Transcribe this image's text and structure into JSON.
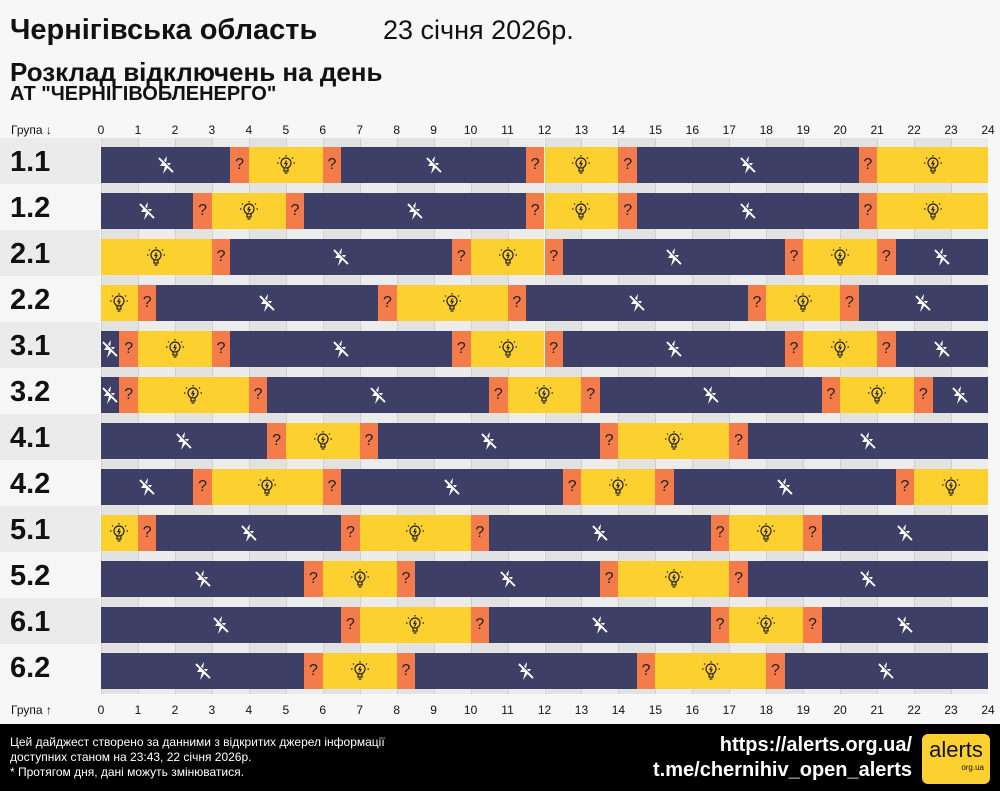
{
  "header": {
    "title": "Чернігівська область",
    "date": "23 січня 2026р.",
    "subtitle": "Розклад відключень на день",
    "company": "АТ \"ЧЕРНІГІВОБЛЕНЕРГО\""
  },
  "chart_data": {
    "type": "table",
    "x_top_label": "Група ↓",
    "x_bottom_label": "Група ↑",
    "xlim": [
      0,
      24
    ],
    "ticks": [
      "0",
      "1",
      "2",
      "3",
      "4",
      "5",
      "6",
      "7",
      "8",
      "9",
      "10",
      "11",
      "12",
      "13",
      "14",
      "15",
      "16",
      "17",
      "18",
      "19",
      "20",
      "21",
      "22",
      "23",
      "24"
    ],
    "legend": {
      "off": "power-off-icon",
      "on": "light-bulb-icon",
      "maybe": "?"
    },
    "colors": {
      "off": "#3e3f66",
      "on": "#fcd02f",
      "maybe": "#f47c4b"
    },
    "groups": [
      {
        "name": "1.1",
        "segments": [
          [
            "off",
            0,
            3.5
          ],
          [
            "maybe",
            3.5,
            4
          ],
          [
            "on",
            4,
            6
          ],
          [
            "maybe",
            6,
            6.5
          ],
          [
            "off",
            6.5,
            11.5
          ],
          [
            "maybe",
            11.5,
            12
          ],
          [
            "on",
            12,
            14
          ],
          [
            "maybe",
            14,
            14.5
          ],
          [
            "off",
            14.5,
            20.5
          ],
          [
            "maybe",
            20.5,
            21
          ],
          [
            "on",
            21,
            24
          ]
        ]
      },
      {
        "name": "1.2",
        "segments": [
          [
            "off",
            0,
            2.5
          ],
          [
            "maybe",
            2.5,
            3
          ],
          [
            "on",
            3,
            5
          ],
          [
            "maybe",
            5,
            5.5
          ],
          [
            "off",
            5.5,
            11.5
          ],
          [
            "maybe",
            11.5,
            12
          ],
          [
            "on",
            12,
            14
          ],
          [
            "maybe",
            14,
            14.5
          ],
          [
            "off",
            14.5,
            20.5
          ],
          [
            "maybe",
            20.5,
            21
          ],
          [
            "on",
            21,
            24
          ]
        ]
      },
      {
        "name": "2.1",
        "segments": [
          [
            "on",
            0,
            3
          ],
          [
            "maybe",
            3,
            3.5
          ],
          [
            "off",
            3.5,
            9.5
          ],
          [
            "maybe",
            9.5,
            10
          ],
          [
            "on",
            10,
            12
          ],
          [
            "maybe",
            12,
            12.5
          ],
          [
            "off",
            12.5,
            18.5
          ],
          [
            "maybe",
            18.5,
            19
          ],
          [
            "on",
            19,
            21
          ],
          [
            "maybe",
            21,
            21.5
          ],
          [
            "off",
            21.5,
            24
          ]
        ]
      },
      {
        "name": "2.2",
        "segments": [
          [
            "on",
            0,
            1
          ],
          [
            "maybe",
            1,
            1.5
          ],
          [
            "off",
            1.5,
            7.5
          ],
          [
            "maybe",
            7.5,
            8
          ],
          [
            "on",
            8,
            11
          ],
          [
            "maybe",
            11,
            11.5
          ],
          [
            "off",
            11.5,
            17.5
          ],
          [
            "maybe",
            17.5,
            18
          ],
          [
            "on",
            18,
            20
          ],
          [
            "maybe",
            20,
            20.5
          ],
          [
            "off",
            20.5,
            24
          ]
        ]
      },
      {
        "name": "3.1",
        "segments": [
          [
            "off",
            0,
            0.5
          ],
          [
            "maybe",
            0.5,
            1
          ],
          [
            "on",
            1,
            3
          ],
          [
            "maybe",
            3,
            3.5
          ],
          [
            "off",
            3.5,
            9.5
          ],
          [
            "maybe",
            9.5,
            10
          ],
          [
            "on",
            10,
            12
          ],
          [
            "maybe",
            12,
            12.5
          ],
          [
            "off",
            12.5,
            18.5
          ],
          [
            "maybe",
            18.5,
            19
          ],
          [
            "on",
            19,
            21
          ],
          [
            "maybe",
            21,
            21.5
          ],
          [
            "off",
            21.5,
            24
          ]
        ]
      },
      {
        "name": "3.2",
        "segments": [
          [
            "off",
            0,
            0.5
          ],
          [
            "maybe",
            0.5,
            1
          ],
          [
            "on",
            1,
            4
          ],
          [
            "maybe",
            4,
            4.5
          ],
          [
            "off",
            4.5,
            10.5
          ],
          [
            "maybe",
            10.5,
            11
          ],
          [
            "on",
            11,
            13
          ],
          [
            "maybe",
            13,
            13.5
          ],
          [
            "off",
            13.5,
            19.5
          ],
          [
            "maybe",
            19.5,
            20
          ],
          [
            "on",
            20,
            22
          ],
          [
            "maybe",
            22,
            22.5
          ],
          [
            "off",
            22.5,
            24
          ]
        ]
      },
      {
        "name": "4.1",
        "segments": [
          [
            "off",
            0,
            4.5
          ],
          [
            "maybe",
            4.5,
            5
          ],
          [
            "on",
            5,
            7
          ],
          [
            "maybe",
            7,
            7.5
          ],
          [
            "off",
            7.5,
            13.5
          ],
          [
            "maybe",
            13.5,
            14
          ],
          [
            "on",
            14,
            17
          ],
          [
            "maybe",
            17,
            17.5
          ],
          [
            "off",
            17.5,
            24
          ]
        ]
      },
      {
        "name": "4.2",
        "segments": [
          [
            "off",
            0,
            2.5
          ],
          [
            "maybe",
            2.5,
            3
          ],
          [
            "on",
            3,
            6
          ],
          [
            "maybe",
            6,
            6.5
          ],
          [
            "off",
            6.5,
            12.5
          ],
          [
            "maybe",
            12.5,
            13
          ],
          [
            "on",
            13,
            15
          ],
          [
            "maybe",
            15,
            15.5
          ],
          [
            "off",
            15.5,
            21.5
          ],
          [
            "maybe",
            21.5,
            22
          ],
          [
            "on",
            22,
            24
          ]
        ]
      },
      {
        "name": "5.1",
        "segments": [
          [
            "on",
            0,
            1
          ],
          [
            "maybe",
            1,
            1.5
          ],
          [
            "off",
            1.5,
            6.5
          ],
          [
            "maybe",
            6.5,
            7
          ],
          [
            "on",
            7,
            10
          ],
          [
            "maybe",
            10,
            10.5
          ],
          [
            "off",
            10.5,
            16.5
          ],
          [
            "maybe",
            16.5,
            17
          ],
          [
            "on",
            17,
            19
          ],
          [
            "maybe",
            19,
            19.5
          ],
          [
            "off",
            19.5,
            24
          ]
        ]
      },
      {
        "name": "5.2",
        "segments": [
          [
            "off",
            0,
            5.5
          ],
          [
            "maybe",
            5.5,
            6
          ],
          [
            "on",
            6,
            8
          ],
          [
            "maybe",
            8,
            8.5
          ],
          [
            "off",
            8.5,
            13.5
          ],
          [
            "maybe",
            13.5,
            14
          ],
          [
            "on",
            14,
            17
          ],
          [
            "maybe",
            17,
            17.5
          ],
          [
            "off",
            17.5,
            24
          ]
        ]
      },
      {
        "name": "6.1",
        "segments": [
          [
            "off",
            0,
            6.5
          ],
          [
            "maybe",
            6.5,
            7
          ],
          [
            "on",
            7,
            10
          ],
          [
            "maybe",
            10,
            10.5
          ],
          [
            "off",
            10.5,
            16.5
          ],
          [
            "maybe",
            16.5,
            17
          ],
          [
            "on",
            17,
            19
          ],
          [
            "maybe",
            19,
            19.5
          ],
          [
            "off",
            19.5,
            24
          ]
        ]
      },
      {
        "name": "6.2",
        "segments": [
          [
            "off",
            0,
            5.5
          ],
          [
            "maybe",
            5.5,
            6
          ],
          [
            "on",
            6,
            8
          ],
          [
            "maybe",
            8,
            8.5
          ],
          [
            "off",
            8.5,
            14.5
          ],
          [
            "maybe",
            14.5,
            15
          ],
          [
            "on",
            15,
            18
          ],
          [
            "maybe",
            18,
            18.5
          ],
          [
            "off",
            18.5,
            24
          ]
        ]
      }
    ]
  },
  "footer": {
    "note1": "Цей дайджест створено за данними з відкритих джерел інформації",
    "note2": "доступних станом на 23:43, 22 січня 2026р.",
    "note3": "* Протягом дня, дані можуть змінюватися.",
    "link1": "https://alerts.org.ua/",
    "link2": "t.me/chernihiv_open_alerts",
    "logo_text": "alerts",
    "logo_sub": "org.ua"
  }
}
